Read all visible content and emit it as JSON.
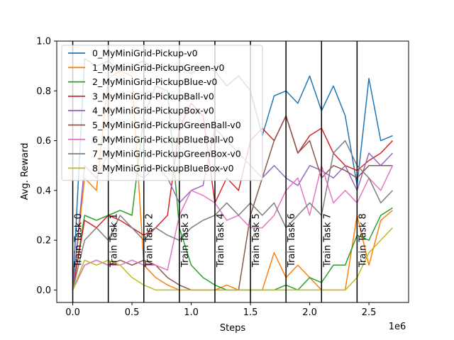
{
  "chart_data": {
    "type": "line",
    "xlabel": "Steps",
    "ylabel": "Avg. Reward",
    "x_exponent_label": "1e6",
    "xlim": [
      -0.135,
      2.835
    ],
    "ylim": [
      -0.05,
      1.0
    ],
    "x_ticks": [
      0.0,
      0.5,
      1.0,
      1.5,
      2.0,
      2.5
    ],
    "x_tick_labels": [
      "0.0",
      "0.5",
      "1.0",
      "1.5",
      "2.0",
      "2.5"
    ],
    "y_ticks": [
      0.0,
      0.2,
      0.4,
      0.6,
      0.8,
      1.0
    ],
    "y_tick_labels": [
      "0.0",
      "0.2",
      "0.4",
      "0.6",
      "0.8",
      "1.0"
    ],
    "grid": false,
    "legend_position": "upper-left",
    "task_boundaries": [
      {
        "x": 0.0,
        "label": "Train Task 0"
      },
      {
        "x": 0.3,
        "label": "Train Task 1"
      },
      {
        "x": 0.6,
        "label": "Train Task 2"
      },
      {
        "x": 0.9,
        "label": "Train Task 3"
      },
      {
        "x": 1.2,
        "label": "Train Task 4"
      },
      {
        "x": 1.5,
        "label": "Train Task 5"
      },
      {
        "x": 1.8,
        "label": "Train Task 6"
      },
      {
        "x": 2.1,
        "label": "Train Task 7"
      },
      {
        "x": 2.4,
        "label": "Train Task 8"
      }
    ],
    "series": [
      {
        "name": "0_MyMiniGrid-Pickup-v0",
        "color": "#1f77b4",
        "x": [
          0.0,
          0.1,
          0.2,
          0.3,
          0.4,
          0.5,
          0.6,
          0.7,
          0.8,
          0.9,
          1.0,
          1.1,
          1.2,
          1.3,
          1.4,
          1.5,
          1.6,
          1.7,
          1.8,
          1.9,
          2.0,
          2.1,
          2.2,
          2.3,
          2.4,
          2.5,
          2.6,
          2.7
        ],
        "y": [
          0.0,
          0.93,
          0.9,
          0.92,
          0.88,
          0.9,
          0.92,
          0.88,
          0.9,
          0.9,
          0.87,
          0.9,
          0.88,
          0.82,
          0.86,
          0.8,
          0.62,
          0.78,
          0.8,
          0.75,
          0.86,
          0.72,
          0.82,
          0.7,
          0.42,
          0.85,
          0.6,
          0.62
        ]
      },
      {
        "name": "1_MyMiniGrid-PickupGreen-v0",
        "color": "#ff7f0e",
        "x": [
          0.0,
          0.1,
          0.2,
          0.3,
          0.4,
          0.5,
          0.6,
          0.7,
          0.8,
          0.9,
          1.0,
          1.1,
          1.2,
          1.3,
          1.4,
          1.5,
          1.6,
          1.7,
          1.8,
          1.9,
          2.0,
          2.1,
          2.2,
          2.3,
          2.4,
          2.5,
          2.6,
          2.7
        ],
        "y": [
          0.0,
          0.45,
          0.4,
          0.85,
          0.88,
          0.86,
          0.1,
          0.05,
          0.02,
          0.0,
          0.0,
          0.0,
          0.0,
          0.02,
          0.0,
          0.0,
          0.0,
          0.15,
          0.05,
          0.1,
          0.05,
          0.0,
          0.0,
          0.0,
          0.3,
          0.1,
          0.28,
          0.32
        ]
      },
      {
        "name": "2_MyMiniGrid-PickupBlue-v0",
        "color": "#2ca02c",
        "x": [
          0.0,
          0.1,
          0.2,
          0.3,
          0.4,
          0.5,
          0.6,
          0.7,
          0.8,
          0.9,
          1.0,
          1.1,
          1.2,
          1.3,
          1.4,
          1.5,
          1.6,
          1.7,
          1.8,
          1.9,
          2.0,
          2.1,
          2.2,
          2.3,
          2.4,
          2.5,
          2.6,
          2.7
        ],
        "y": [
          0.0,
          0.3,
          0.28,
          0.3,
          0.32,
          0.3,
          0.7,
          0.82,
          0.8,
          0.25,
          0.1,
          0.05,
          0.02,
          0.0,
          0.0,
          0.0,
          0.0,
          0.0,
          0.02,
          0.0,
          0.05,
          0.03,
          0.1,
          0.1,
          0.22,
          0.2,
          0.3,
          0.33
        ]
      },
      {
        "name": "3_MyMiniGrid-PickupBall-v0",
        "color": "#d62728",
        "x": [
          0.0,
          0.1,
          0.2,
          0.3,
          0.4,
          0.5,
          0.6,
          0.7,
          0.8,
          0.9,
          1.0,
          1.1,
          1.2,
          1.3,
          1.4,
          1.5,
          1.6,
          1.7,
          1.8,
          1.9,
          2.0,
          2.1,
          2.2,
          2.3,
          2.4,
          2.5,
          2.6,
          2.7
        ],
        "y": [
          0.0,
          0.28,
          0.25,
          0.3,
          0.28,
          0.25,
          0.22,
          0.25,
          0.3,
          0.65,
          0.75,
          0.7,
          0.35,
          0.45,
          0.4,
          0.6,
          0.65,
          0.6,
          0.7,
          0.55,
          0.62,
          0.65,
          0.55,
          0.5,
          0.48,
          0.52,
          0.55,
          0.6
        ]
      },
      {
        "name": "4_MyMiniGrid-PickupBox-v0",
        "color": "#9467bd",
        "x": [
          0.0,
          0.1,
          0.2,
          0.3,
          0.4,
          0.5,
          0.6,
          0.7,
          0.8,
          0.9,
          1.0,
          1.1,
          1.2,
          1.3,
          1.4,
          1.5,
          1.6,
          1.7,
          1.8,
          1.9,
          2.0,
          2.1,
          2.2,
          2.3,
          2.4,
          2.5,
          2.6,
          2.7
        ],
        "y": [
          0.0,
          0.5,
          0.45,
          0.55,
          0.5,
          0.48,
          0.45,
          0.5,
          0.45,
          0.35,
          0.4,
          0.42,
          0.65,
          0.6,
          0.55,
          0.5,
          0.45,
          0.5,
          0.45,
          0.42,
          0.5,
          0.48,
          0.45,
          0.5,
          0.4,
          0.55,
          0.5,
          0.55
        ]
      },
      {
        "name": "5_MyMiniGrid-PickupGreenBall-v0",
        "color": "#8c564b",
        "x": [
          0.0,
          0.1,
          0.2,
          0.3,
          0.4,
          0.5,
          0.6,
          0.7,
          0.8,
          0.9,
          1.0,
          1.1,
          1.2,
          1.3,
          1.4,
          1.5,
          1.6,
          1.7,
          1.8,
          1.9,
          2.0,
          2.1,
          2.2,
          2.3,
          2.4,
          2.5,
          2.6,
          2.7
        ],
        "y": [
          0.0,
          0.1,
          0.12,
          0.1,
          0.12,
          0.1,
          0.12,
          0.1,
          0.05,
          0.02,
          0.0,
          0.0,
          0.0,
          0.0,
          0.0,
          0.3,
          0.45,
          0.6,
          0.7,
          0.55,
          0.6,
          0.45,
          0.5,
          0.48,
          0.45,
          0.5,
          0.5,
          0.5
        ]
      },
      {
        "name": "6_MyMiniGrid-PickupBlueBall-v0",
        "color": "#e377c2",
        "x": [
          0.0,
          0.1,
          0.2,
          0.3,
          0.4,
          0.5,
          0.6,
          0.7,
          0.8,
          0.9,
          1.0,
          1.1,
          1.2,
          1.3,
          1.4,
          1.5,
          1.6,
          1.7,
          1.8,
          1.9,
          2.0,
          2.1,
          2.2,
          2.3,
          2.4,
          2.5,
          2.6,
          2.7
        ],
        "y": [
          0.0,
          0.1,
          0.12,
          0.1,
          0.1,
          0.12,
          0.1,
          0.1,
          0.08,
          0.3,
          0.4,
          0.38,
          0.35,
          0.28,
          0.3,
          0.25,
          0.25,
          0.3,
          0.4,
          0.45,
          0.3,
          0.5,
          0.35,
          0.4,
          0.35,
          0.45,
          0.4,
          0.5
        ]
      },
      {
        "name": "7_MyMiniGrid-PickupGreenBox-v0",
        "color": "#7f7f7f",
        "x": [
          0.0,
          0.1,
          0.2,
          0.3,
          0.4,
          0.5,
          0.6,
          0.7,
          0.8,
          0.9,
          1.0,
          1.1,
          1.2,
          1.3,
          1.4,
          1.5,
          1.6,
          1.7,
          1.8,
          1.9,
          2.0,
          2.1,
          2.2,
          2.3,
          2.4,
          2.5,
          2.6,
          2.7
        ],
        "y": [
          0.0,
          0.2,
          0.25,
          0.2,
          0.3,
          0.25,
          0.2,
          0.25,
          0.22,
          0.2,
          0.25,
          0.28,
          0.3,
          0.35,
          0.3,
          0.35,
          0.3,
          0.35,
          0.25,
          0.3,
          0.35,
          0.3,
          0.55,
          0.6,
          0.5,
          0.45,
          0.35,
          0.4
        ]
      },
      {
        "name": "8_MyMiniGrid-PickupBlueBox-v0",
        "color": "#bcbd22",
        "x": [
          0.0,
          0.1,
          0.2,
          0.3,
          0.4,
          0.5,
          0.6,
          0.7,
          0.8,
          0.9,
          1.0,
          1.1,
          1.2,
          1.3,
          1.4,
          1.5,
          1.6,
          1.7,
          1.8,
          1.9,
          2.0,
          2.1,
          2.2,
          2.3,
          2.4,
          2.5,
          2.6,
          2.7
        ],
        "y": [
          0.0,
          0.12,
          0.1,
          0.12,
          0.1,
          0.05,
          0.02,
          0.0,
          0.0,
          0.0,
          0.0,
          0.0,
          0.0,
          0.0,
          0.0,
          0.0,
          0.0,
          0.0,
          0.0,
          0.0,
          0.0,
          0.0,
          0.0,
          0.0,
          0.05,
          0.15,
          0.2,
          0.25
        ]
      }
    ]
  }
}
